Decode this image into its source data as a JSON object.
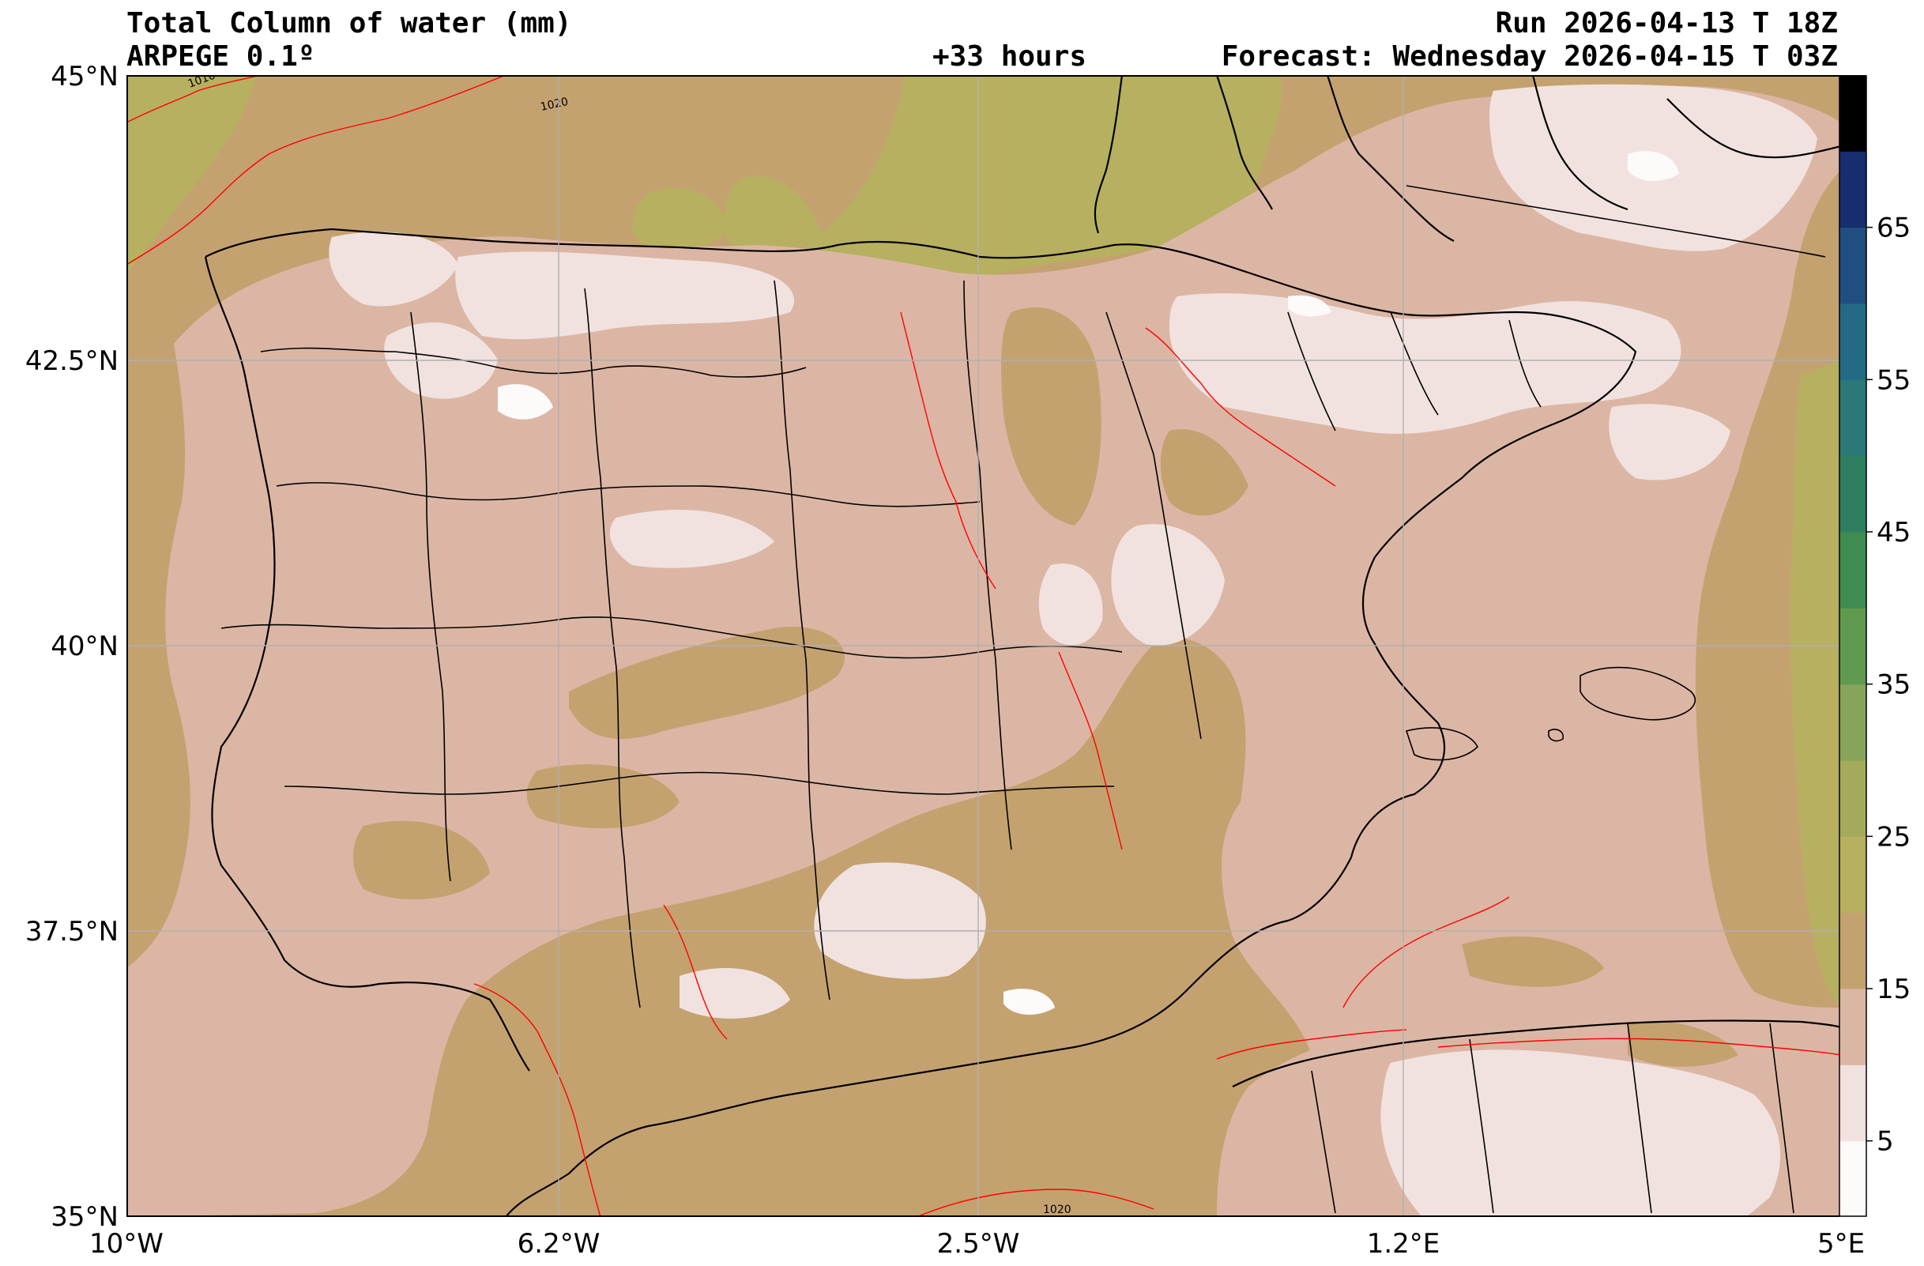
{
  "header": {
    "title": "Total Column of water (mm)",
    "model": "ARPEGE 0.1º",
    "lead_time": "+33 hours",
    "run": "Run 2026-04-13 T 18Z",
    "forecast": "Forecast: Wednesday 2026-04-15 T 03Z"
  },
  "map": {
    "lat_labels": [
      "45°N",
      "42.5°N",
      "40°N",
      "37.5°N",
      "35°N"
    ],
    "lon_labels": [
      "10°W",
      "6.2°W",
      "2.5°W",
      "1.2°E",
      "5°E"
    ],
    "isobar_labels": [
      "1010",
      "1020",
      "1020"
    ],
    "colors": {
      "land_sea_15_20": "#c4a270",
      "band_10_15": "#dcb6a4",
      "band_5_10": "#f1e2e0",
      "band_0_5": "#fdfafa",
      "band_20_25": "#b6b060",
      "isobar": "#ff0000",
      "borders": "#000000",
      "grid": "#b0b0b0"
    }
  },
  "colorbar": {
    "labels": [
      "65",
      "55",
      "45",
      "35",
      "25",
      "15",
      "5"
    ],
    "colors": [
      "#fdfafa",
      "#f1e2e0",
      "#dcb6a4",
      "#c4a270",
      "#b6b060",
      "#a3aa5c",
      "#86a45a",
      "#5f9a4e",
      "#3f8c52",
      "#2e7e60",
      "#2a7878",
      "#236a84",
      "#1f4f80",
      "#162e70",
      "#000000"
    ]
  }
}
